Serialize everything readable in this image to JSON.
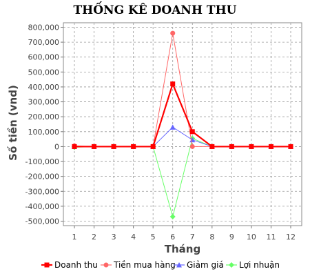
{
  "chart_data": {
    "type": "line",
    "title": "THỐNG KÊ DOANH THU",
    "xlabel": "Tháng",
    "ylabel": "Số tiền (vnd)",
    "x": [
      1,
      2,
      3,
      4,
      5,
      6,
      7,
      8,
      9,
      10,
      11,
      12
    ],
    "ylim": [
      -530000,
      830000
    ],
    "yticks": [
      800000,
      700000,
      600000,
      500000,
      400000,
      300000,
      200000,
      100000,
      0,
      -100000,
      -200000,
      -300000,
      -400000,
      -500000
    ],
    "ytick_labels": [
      "800,000",
      "700,000",
      "600,000",
      "500,000",
      "400,000",
      "300,000",
      "200,000",
      "100,000",
      "0",
      "-100,000",
      "-200,000",
      "-300,000",
      "-400,000",
      "-500,000"
    ],
    "grid": true,
    "legend_position": "bottom",
    "series": [
      {
        "name": "Doanh thu",
        "color": "#ff0000",
        "marker": "square",
        "values": [
          0,
          0,
          0,
          0,
          0,
          420000,
          100000,
          0,
          0,
          0,
          0,
          0
        ]
      },
      {
        "name": "Tiền mua hàng",
        "color": "#ff6666",
        "marker": "circle",
        "values": [
          5000,
          0,
          0,
          0,
          0,
          760000,
          0,
          0,
          0,
          0,
          0,
          0
        ]
      },
      {
        "name": "Giảm giá",
        "color": "#6666ff",
        "marker": "triangle",
        "values": [
          0,
          0,
          0,
          0,
          0,
          130000,
          45000,
          0,
          0,
          0,
          0,
          0
        ]
      },
      {
        "name": "Lợi nhuận",
        "color": "#66ff66",
        "marker": "diamond",
        "values": [
          -5000,
          0,
          0,
          0,
          0,
          -470000,
          55000,
          0,
          0,
          0,
          0,
          0
        ]
      }
    ]
  }
}
